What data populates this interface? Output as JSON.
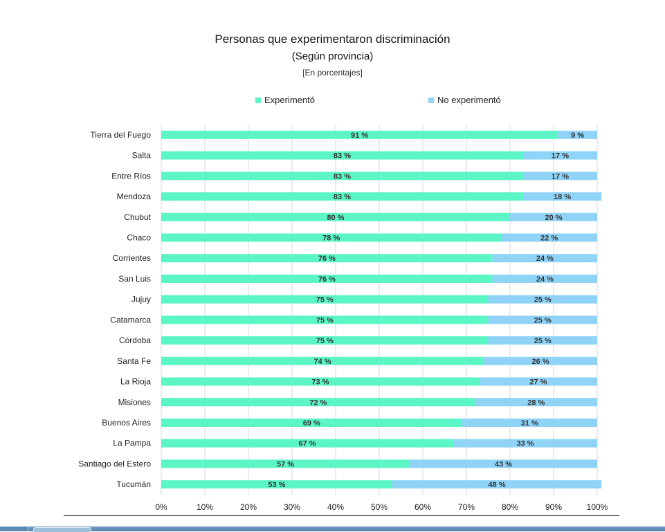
{
  "chart_data": {
    "type": "bar",
    "orientation": "horizontal",
    "stacked": true,
    "title": "Personas que experimentaron discriminación",
    "subtitle": "(Según provincia)",
    "unit_note": "[En porcentajes]",
    "categories": [
      "Tierra del Fuego",
      "Salta",
      "Entre Ríos",
      "Mendoza",
      "Chubut",
      "Chaco",
      "Corrientes",
      "San Luis",
      "Jujuy",
      "Catamarca",
      "Córdoba",
      "Santa Fe",
      "La Rioja",
      "Misiones",
      "Buenos Aires",
      "La Pampa",
      "Santiago del Estero",
      "Tucumán"
    ],
    "series": [
      {
        "name": "Experimentó",
        "color": "#5cf5c6",
        "values": [
          91,
          83,
          83,
          83,
          80,
          78,
          76,
          76,
          75,
          75,
          75,
          74,
          73,
          72,
          69,
          67,
          57,
          53
        ],
        "labels": [
          "91 %",
          "83 %",
          "83 %",
          "83 %",
          "80 %",
          "78 %",
          "76 %",
          "76 %",
          "75 %",
          "75 %",
          "75 %",
          "74 %",
          "73 %",
          "72 %",
          "69 %",
          "67 %",
          "57 %",
          "53 %"
        ]
      },
      {
        "name": "No experimentó",
        "color": "#8fd3f7",
        "values": [
          9,
          17,
          17,
          18,
          20,
          22,
          24,
          24,
          25,
          25,
          25,
          26,
          27,
          28,
          31,
          33,
          43,
          48
        ],
        "labels": [
          "9 %",
          "17 %",
          "17 %",
          "18 %",
          "20 %",
          "22 %",
          "24 %",
          "24 %",
          "25 %",
          "25 %",
          "25 %",
          "26 %",
          "27 %",
          "28 %",
          "31 %",
          "33 %",
          "43 %",
          "48 %"
        ]
      }
    ],
    "xlim": [
      0,
      100
    ],
    "xticks": [
      "0%",
      "10%",
      "20%",
      "30%",
      "40%",
      "50%",
      "60%",
      "70%",
      "80%",
      "90%",
      "100%"
    ],
    "grid": true,
    "legend_position": "top"
  }
}
